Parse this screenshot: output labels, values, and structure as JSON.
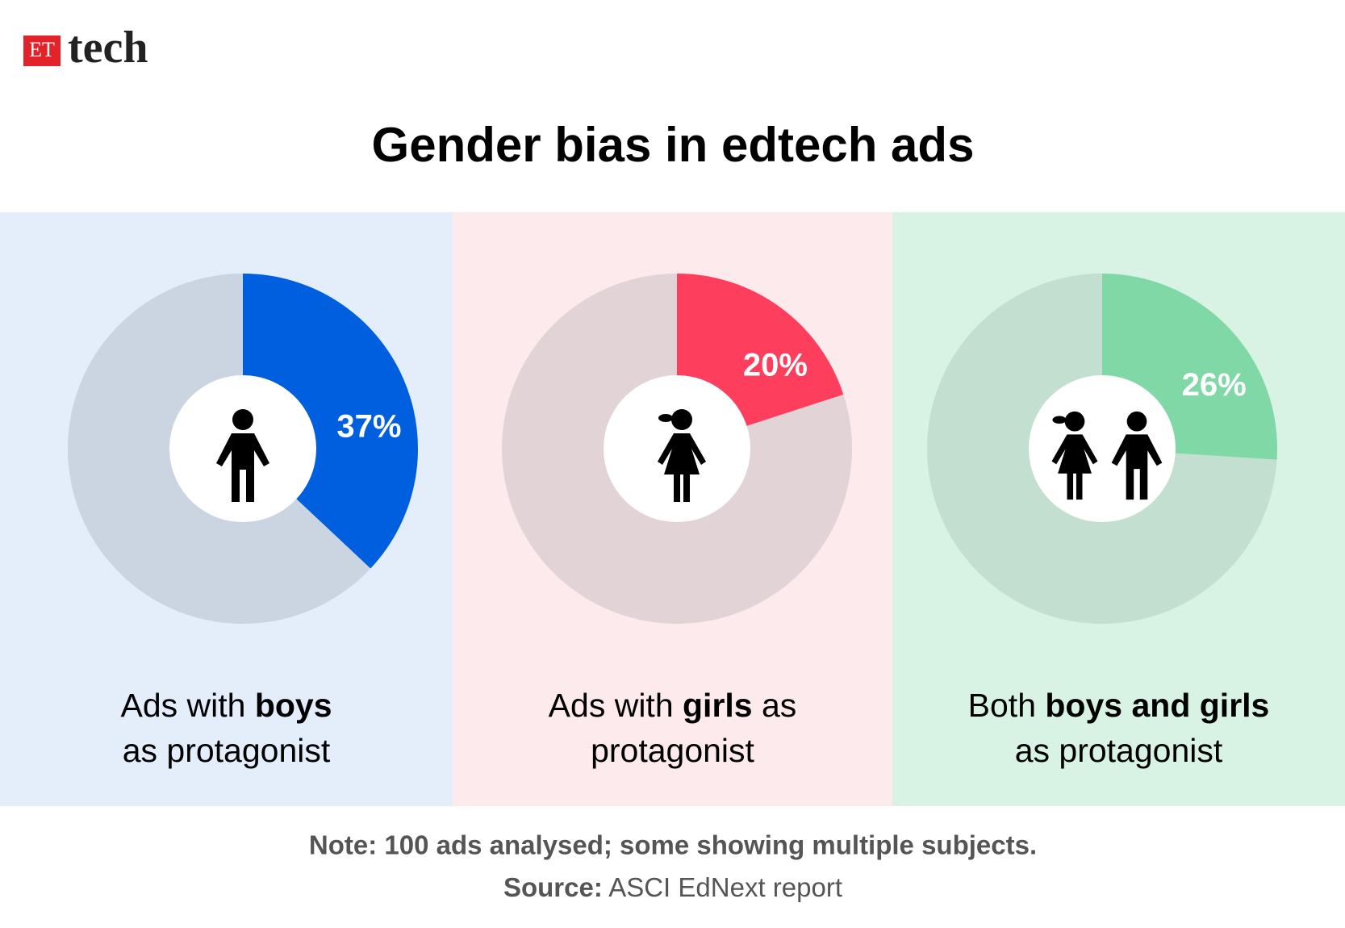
{
  "logo": {
    "mark": "ET",
    "name": "tech"
  },
  "title": "Gender bias in edtech ads",
  "chart_data": [
    {
      "type": "pie",
      "background": "#e4edfa",
      "colors": [
        "#005fdf",
        "#cbd5e2"
      ],
      "values": [
        37,
        63
      ],
      "value_labels": [
        "37%",
        null
      ],
      "caption_lines": [
        [
          {
            "text": "Ads with "
          },
          {
            "text": "boys",
            "bold": true
          }
        ],
        [
          {
            "text": "as protagonist"
          }
        ]
      ]
    },
    {
      "type": "pie",
      "background": "#fdeaec",
      "colors": [
        "#fd3f5d",
        "#e2d3d7"
      ],
      "values": [
        20,
        80
      ],
      "value_labels": [
        "20%",
        null
      ],
      "caption_lines": [
        [
          {
            "text": "Ads with "
          },
          {
            "text": "girls",
            "bold": true
          },
          {
            "text": " as"
          }
        ],
        [
          {
            "text": "protagonist"
          }
        ]
      ]
    },
    {
      "type": "pie",
      "background": "#d8f2e4",
      "colors": [
        "#7fd8a6",
        "#c2dfcf"
      ],
      "values": [
        26,
        74
      ],
      "value_labels": [
        "26%",
        null
      ],
      "caption_lines": [
        [
          {
            "text": "Both "
          },
          {
            "text": "boys and girls",
            "bold": true
          }
        ],
        [
          {
            "text": "as protagonist"
          }
        ]
      ]
    }
  ],
  "note": "Note: 100 ads analysed; some showing multiple subjects.",
  "source": {
    "label": "Source:",
    "text": " ASCI EdNext report"
  }
}
